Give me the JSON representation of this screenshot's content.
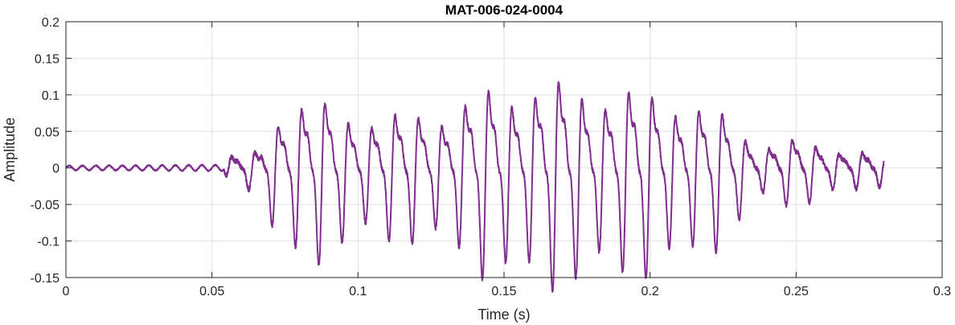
{
  "chart_data": {
    "type": "line",
    "title": "MAT-006-024-0004",
    "xlabel": "Time (s)",
    "ylabel": "Amplitude",
    "xlim": [
      0,
      0.3
    ],
    "ylim": [
      -0.15,
      0.2
    ],
    "xticks": [
      0,
      0.05,
      0.1,
      0.15,
      0.2,
      0.25,
      0.3
    ],
    "xtick_labels": [
      "0",
      "0.05",
      "0.1",
      "0.15",
      "0.2",
      "0.25",
      "0.3"
    ],
    "yticks": [
      -0.15,
      -0.1,
      -0.05,
      0,
      0.05,
      0.1,
      0.15,
      0.2
    ],
    "ytick_labels": [
      "-0.15",
      "-0.1",
      "-0.05",
      "0",
      "0.05",
      "0.1",
      "0.15",
      "0.2"
    ],
    "grid": true,
    "line_color": "#7E2F8E",
    "signal": {
      "duration": 0.28,
      "fundamental_hz": 125,
      "onset_time": 0.054,
      "envelope": [
        {
          "t": 0.0,
          "amp": 0.003
        },
        {
          "t": 0.054,
          "amp": 0.004
        },
        {
          "t": 0.056,
          "amp": 0.02
        },
        {
          "t": 0.066,
          "amp": 0.03
        },
        {
          "t": 0.07,
          "amp": 0.09
        },
        {
          "t": 0.078,
          "amp": 0.125
        },
        {
          "t": 0.09,
          "amp": 0.115
        },
        {
          "t": 0.1,
          "amp": 0.095
        },
        {
          "t": 0.115,
          "amp": 0.095
        },
        {
          "t": 0.13,
          "amp": 0.105
        },
        {
          "t": 0.145,
          "amp": 0.14
        },
        {
          "t": 0.16,
          "amp": 0.155
        },
        {
          "t": 0.175,
          "amp": 0.15
        },
        {
          "t": 0.19,
          "amp": 0.14
        },
        {
          "t": 0.205,
          "amp": 0.135
        },
        {
          "t": 0.22,
          "amp": 0.11
        },
        {
          "t": 0.23,
          "amp": 0.08
        },
        {
          "t": 0.236,
          "amp": 0.04
        },
        {
          "t": 0.25,
          "amp": 0.05
        },
        {
          "t": 0.265,
          "amp": 0.035
        },
        {
          "t": 0.28,
          "amp": 0.022
        }
      ]
    }
  }
}
